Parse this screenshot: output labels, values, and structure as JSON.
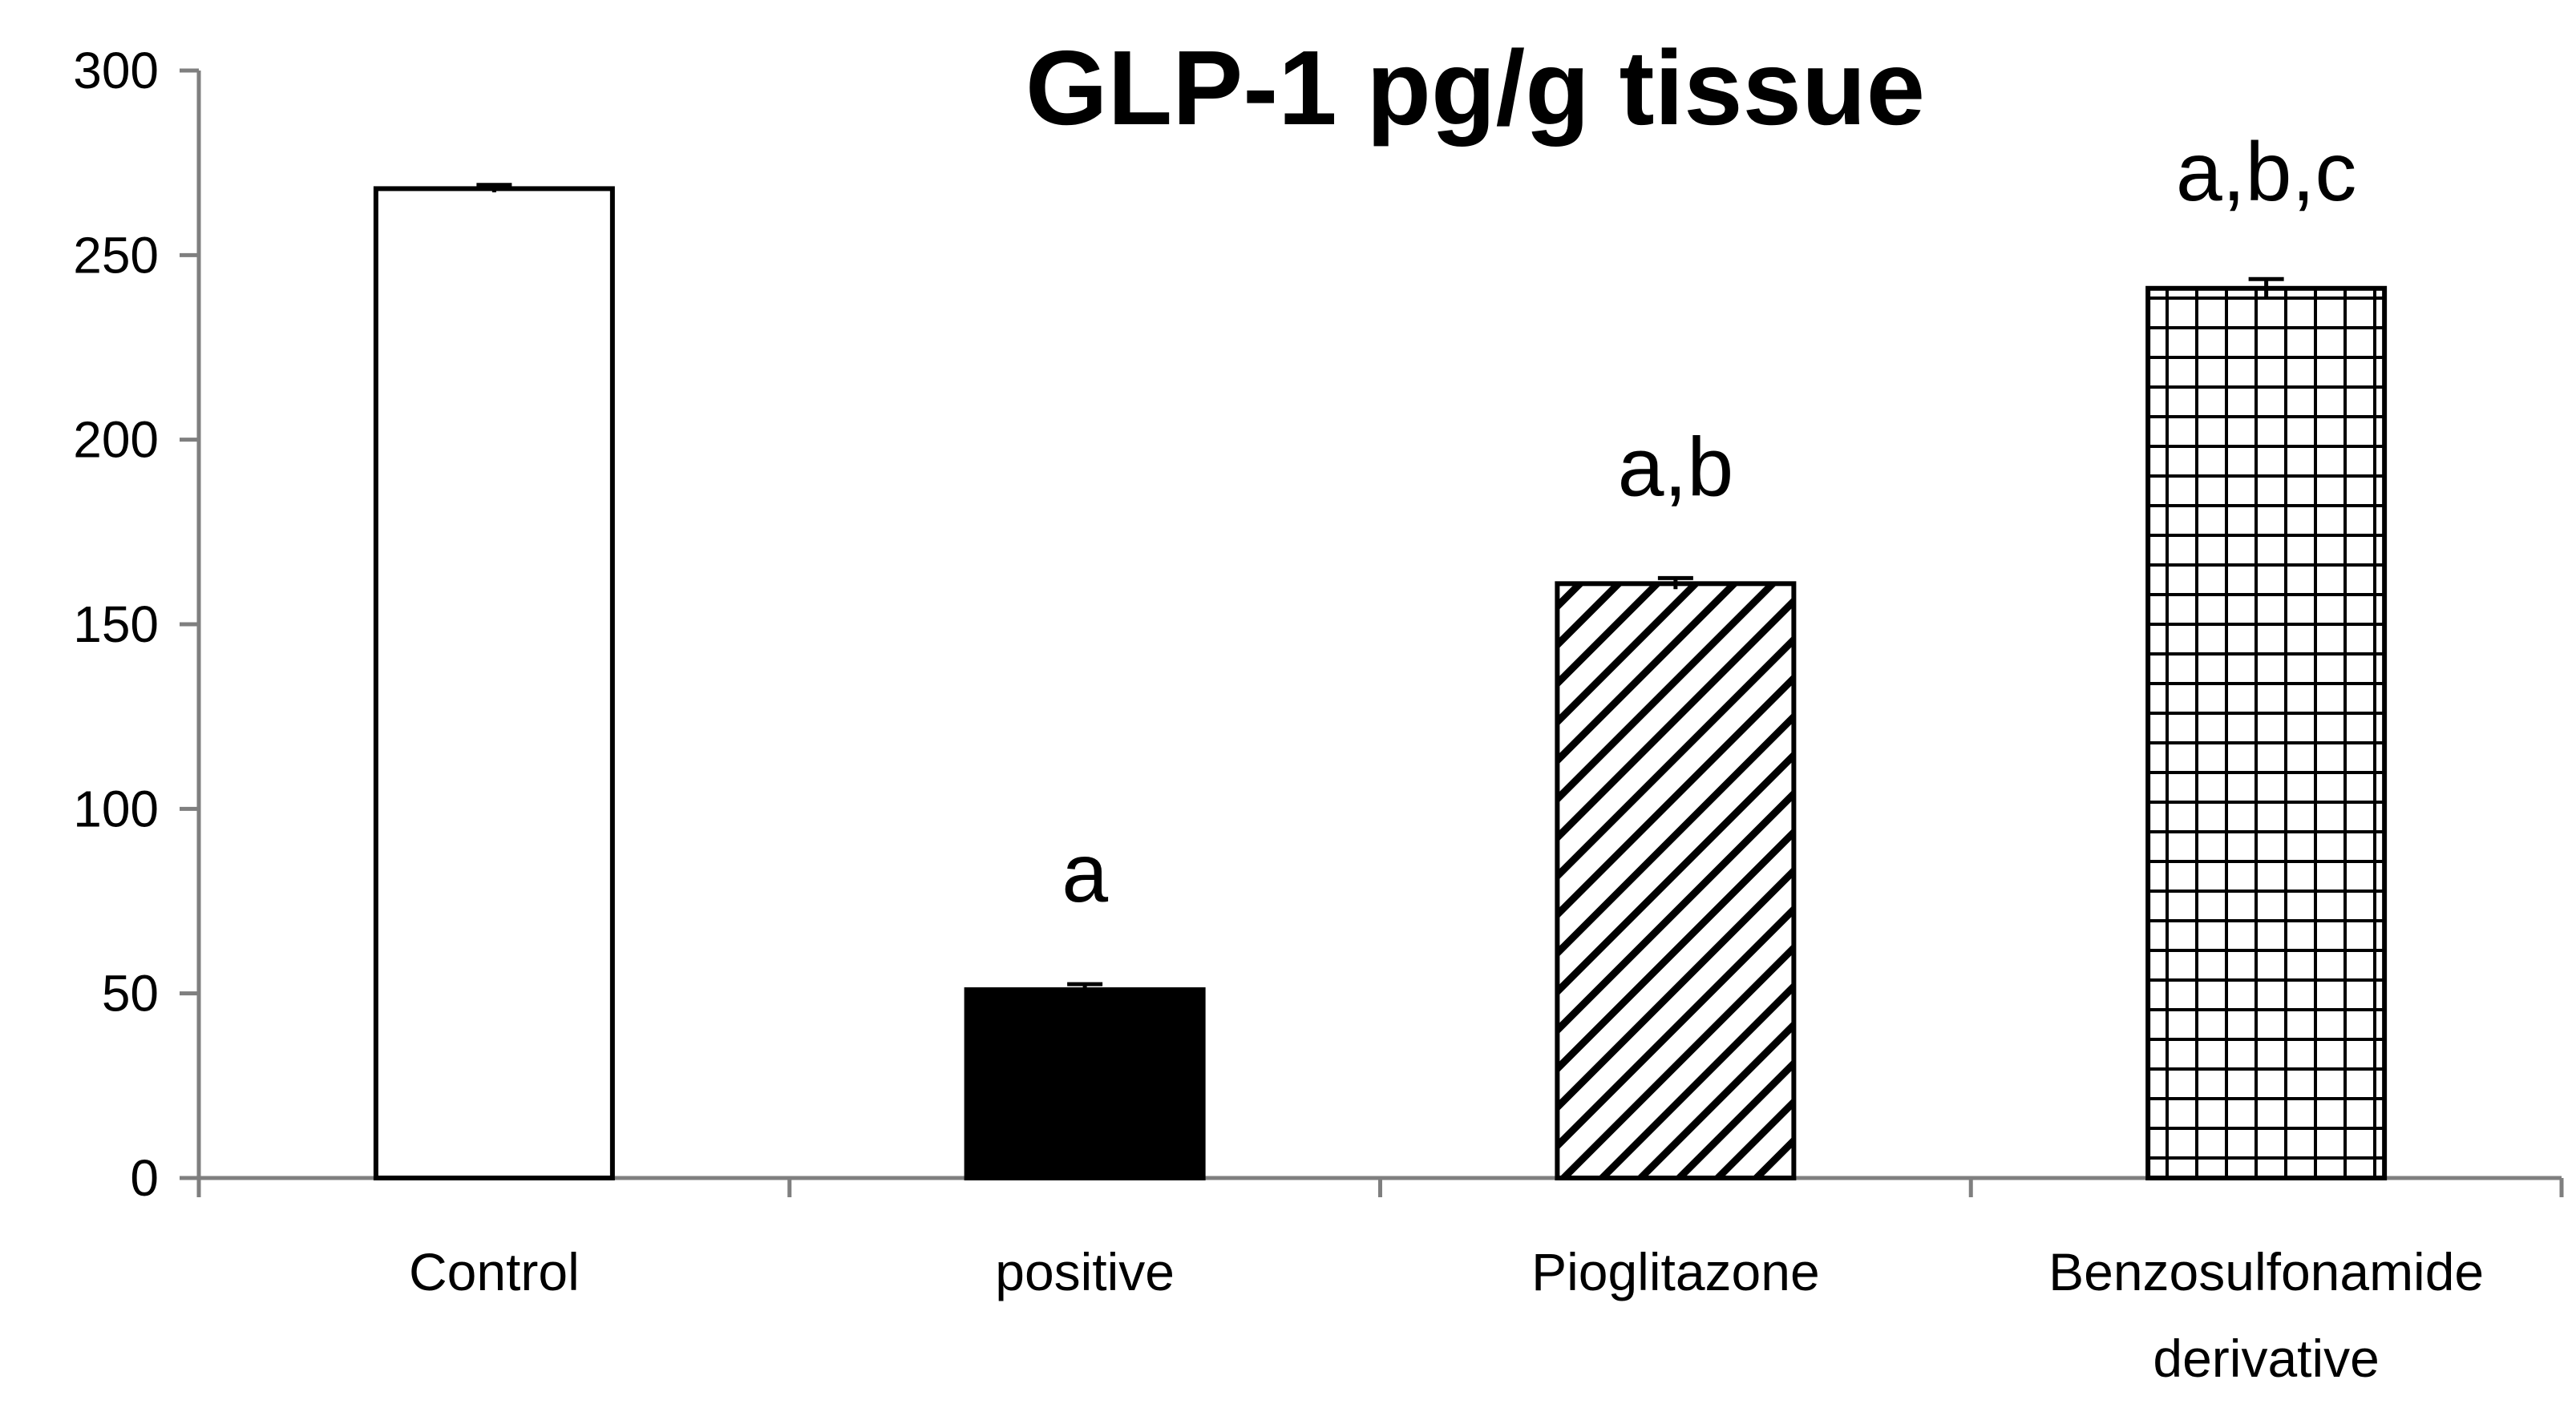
{
  "chart_data": {
    "type": "bar",
    "title": "GLP-1 pg/g tissue",
    "xlabel": "",
    "ylabel": "",
    "ylim": [
      0,
      300
    ],
    "yticks": [
      0,
      50,
      100,
      150,
      200,
      250,
      300
    ],
    "grid": false,
    "legend": "none",
    "categories": [
      [
        "Control"
      ],
      [
        "positive"
      ],
      [
        "Pioglitazone"
      ],
      [
        "Benzosulfonamide",
        "derivative"
      ]
    ],
    "series": [
      {
        "values": [
          268,
          51,
          161,
          241
        ],
        "errors": [
          1,
          1.5,
          1.5,
          2.5
        ],
        "fills": [
          "white",
          "black",
          "diagonal-hatch",
          "grid-hatch"
        ]
      }
    ],
    "annotations": [
      "",
      "a",
      "a,b",
      "a,b,c"
    ],
    "colors": {
      "axis": "#7f7f7f",
      "bar_stroke": "#000000",
      "text": "#000000"
    }
  }
}
